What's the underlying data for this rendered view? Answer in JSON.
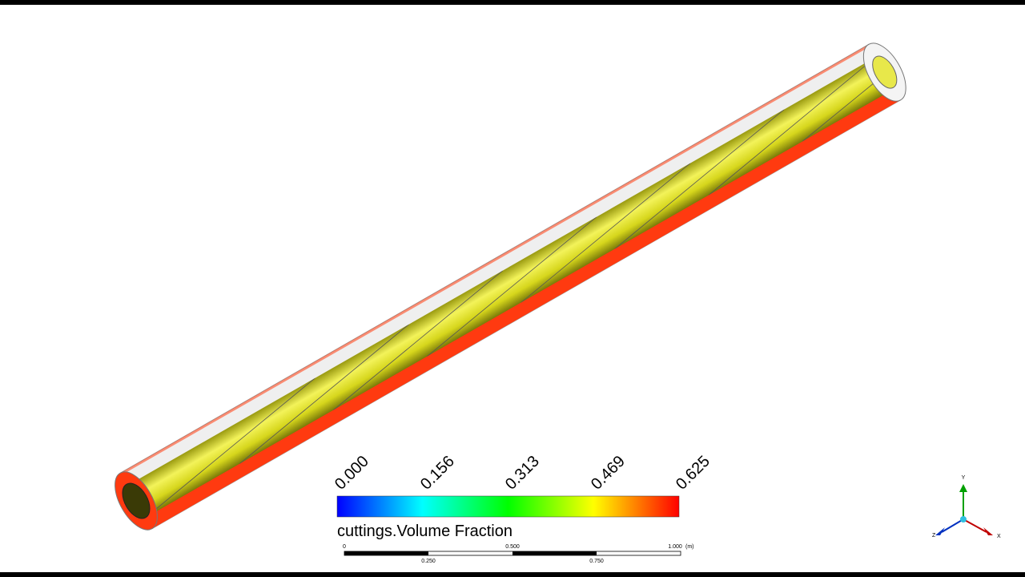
{
  "legend": {
    "title": "cuttings.Volume Fraction",
    "ticks": [
      "0.000",
      "0.156",
      "0.313",
      "0.469",
      "0.625"
    ]
  },
  "scale_bar": {
    "upper_labels": [
      "0",
      "0.500",
      "1.000"
    ],
    "unit": "(m)",
    "lower_labels": [
      "0.250",
      "0.750"
    ]
  },
  "triad": {
    "y": "Y",
    "z": "Z",
    "x": "X"
  }
}
